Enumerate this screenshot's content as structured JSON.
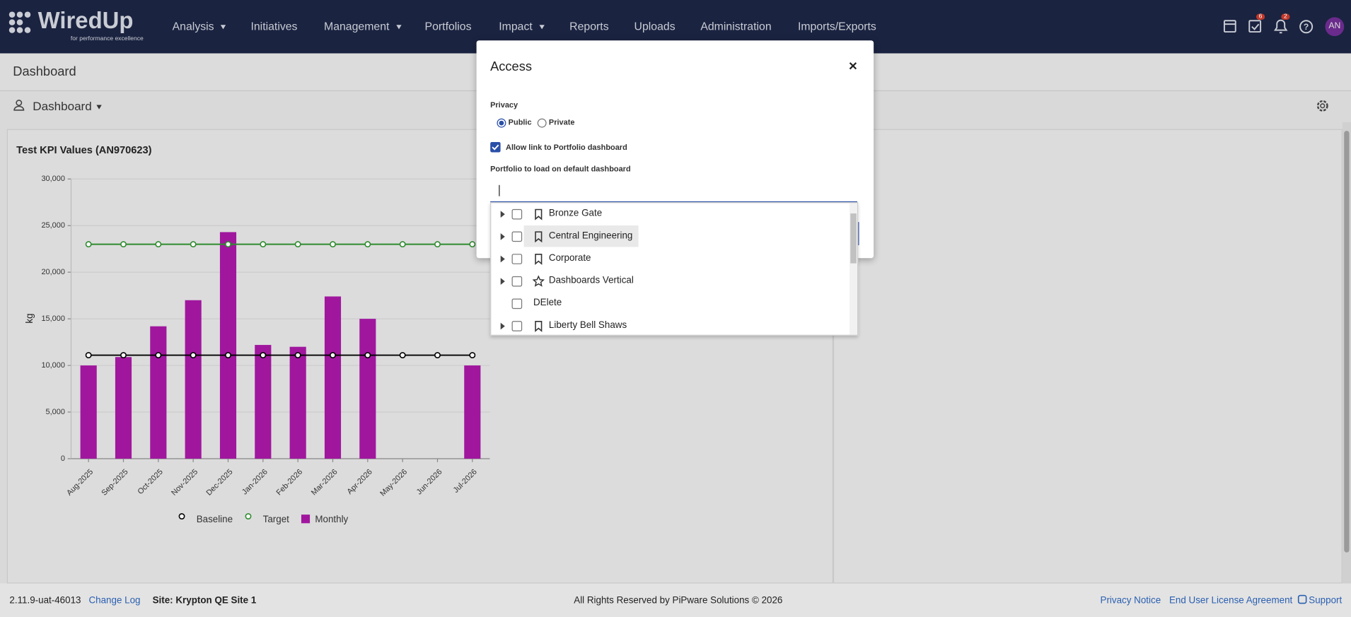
{
  "logo": {
    "name": "WiredUp",
    "tagline": "for performance excellence"
  },
  "nav": {
    "items": [
      "Analysis",
      "Initiatives",
      "Management",
      "Portfolios",
      "Impact",
      "Reports",
      "Uploads",
      "Administration",
      "Imports/Exports"
    ],
    "badges": [
      6,
      2
    ],
    "avatar": "AN"
  },
  "page": {
    "title": "Dashboard",
    "selector": "Dashboard"
  },
  "dialog": {
    "title": "Access",
    "close": "×",
    "privacy_label": "Privacy",
    "options": [
      "Public",
      "Private"
    ],
    "allow_link": "Allow link to Portfolio dashboard",
    "portfolio_label": "Portfolio to load on default dashboard",
    "tree": [
      "Bronze Gate",
      "Central Engineering",
      "Corporate",
      "Dashboards Vertical",
      "DElete",
      "Liberty Bell Shaws"
    ]
  },
  "chart_data": {
    "type": "combo",
    "title": "Test KPI Values (AN970623)",
    "y_label": "kg",
    "categories": [
      "Aug-2025",
      "Sep-2025",
      "Oct-2025",
      "Nov-2025",
      "Dec-2025",
      "Jan-2026",
      "Feb-2026",
      "Mar-2026",
      "Apr-2026",
      "May-2026",
      "Jun-2026",
      "Jul-2026"
    ],
    "series": [
      {
        "name": "Baseline",
        "type": "line",
        "color": "#000000",
        "values": [
          11100,
          11100,
          11100,
          11100,
          11100,
          11100,
          11100,
          11100,
          11100,
          11100,
          11100,
          11100
        ]
      },
      {
        "name": "Target",
        "type": "line",
        "color": "#2e8b2e",
        "values": [
          23000,
          23000,
          23000,
          23000,
          23000,
          23000,
          23000,
          23000,
          23000,
          23000,
          23000,
          23000
        ]
      },
      {
        "name": "Monthly",
        "type": "bar",
        "color": "#a0179e",
        "values": [
          10000,
          10900,
          14200,
          17000,
          24300,
          12200,
          12000,
          17400,
          15000,
          null,
          null,
          10000
        ]
      }
    ],
    "ylim": [
      0,
      30000
    ],
    "yticks": [
      0,
      {
        "value": 5000,
        "label": "5,000"
      },
      {
        "value": 10000,
        "label": "10,000"
      },
      {
        "value": 15000,
        "label": "15,000"
      },
      {
        "value": 20000,
        "label": "20,000"
      },
      {
        "value": 25000,
        "label": "25,000"
      },
      {
        "value": 30000,
        "label": "30,000"
      }
    ],
    "grid": true
  },
  "footer": {
    "version": "2.11.9-uat-46013",
    "changelog": "Change Log",
    "site": "Site: Krypton QE Site 1",
    "copyright": "All Rights Reserved by PiPware Solutions © 2026",
    "links": [
      "Privacy Notice",
      "End User License Agreement",
      "Support"
    ]
  }
}
